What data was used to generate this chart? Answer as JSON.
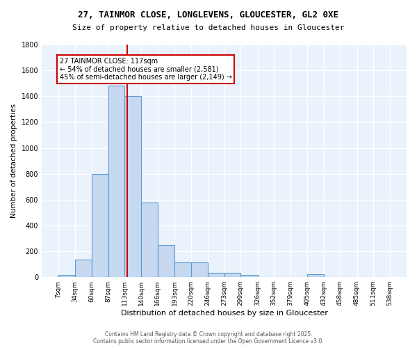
{
  "title": "27, TAINMOR CLOSE, LONGLEVENS, GLOUCESTER, GL2 0XE",
  "subtitle": "Size of property relative to detached houses in Gloucester",
  "xlabel": "Distribution of detached houses by size in Gloucester",
  "ylabel": "Number of detached properties",
  "bin_labels": [
    "7sqm",
    "34sqm",
    "60sqm",
    "87sqm",
    "113sqm",
    "140sqm",
    "166sqm",
    "193sqm",
    "220sqm",
    "246sqm",
    "273sqm",
    "299sqm",
    "326sqm",
    "352sqm",
    "379sqm",
    "405sqm",
    "432sqm",
    "458sqm",
    "485sqm",
    "511sqm",
    "538sqm"
  ],
  "bin_edges": [
    7,
    34,
    60,
    87,
    113,
    140,
    166,
    193,
    220,
    246,
    273,
    299,
    326,
    352,
    379,
    405,
    432,
    458,
    485,
    511,
    538
  ],
  "bar_heights": [
    15,
    135,
    800,
    1480,
    1400,
    575,
    250,
    115,
    115,
    35,
    35,
    15,
    0,
    0,
    0,
    20,
    0,
    0,
    0,
    0
  ],
  "bar_color": "#c6d9f1",
  "bar_edge_color": "#5b9bd5",
  "bg_color": "#eaf2fb",
  "grid_color": "#ffffff",
  "vline_x": 117,
  "vline_color": "#cc0000",
  "annotation_text": "27 TAINMOR CLOSE: 117sqm\n← 54% of detached houses are smaller (2,581)\n45% of semi-detached houses are larger (2,149) →",
  "annotation_box_color": "#cc0000",
  "annotation_text_color": "#000000",
  "footer_text": "Contains HM Land Registry data © Crown copyright and database right 2025.\nContains public sector information licensed under the Open Government Licence v3.0.",
  "ylim": [
    0,
    1800
  ],
  "yticks": [
    0,
    200,
    400,
    600,
    800,
    1000,
    1200,
    1400,
    1600,
    1800
  ]
}
